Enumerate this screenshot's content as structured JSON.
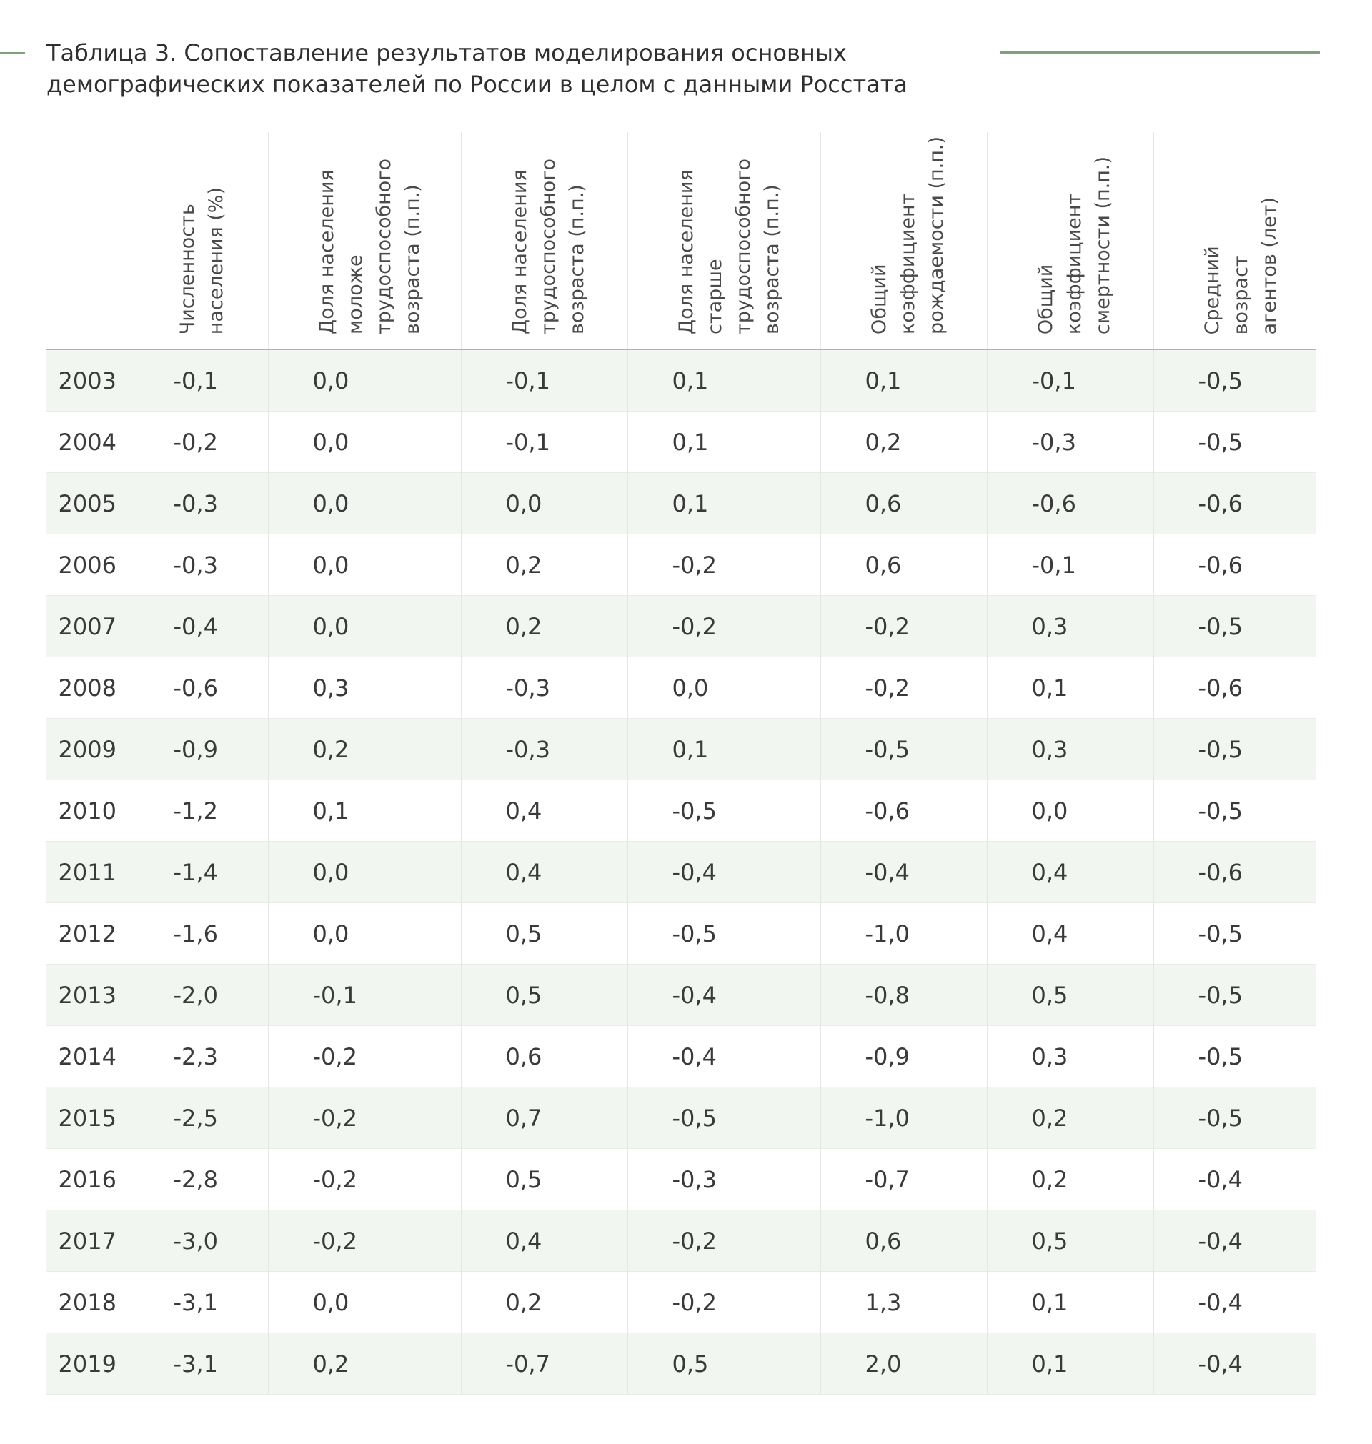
{
  "title": {
    "line1": "Таблица 3. Сопоставление результатов моделирования основных",
    "line2": "демографических показателей по России в целом с данными Росстата"
  },
  "table": {
    "columns": [
      "Численность\nнаселения (%)",
      "Доля населения\nмоложе\nтрудоспособного\nвозраста (п.п.)",
      "Доля населения\nтрудоспособного\nвозраста (п.п.)",
      "Доля населения\nстарше\nтрудоспособного\nвозраста (п.п.)",
      "Общий\nкоэффициент\nрождаемости (п.п.)",
      "Общий\nкоэффициент\nсмертности (п.п.)",
      "Средний\nвозраст\nагентов (лет)"
    ],
    "rows": [
      {
        "year": "2003",
        "values": [
          "-0,1",
          "0,0",
          "-0,1",
          "0,1",
          "0,1",
          "-0,1",
          "-0,5"
        ]
      },
      {
        "year": "2004",
        "values": [
          "-0,2",
          "0,0",
          "-0,1",
          "0,1",
          "0,2",
          "-0,3",
          "-0,5"
        ]
      },
      {
        "year": "2005",
        "values": [
          "-0,3",
          "0,0",
          "0,0",
          "0,1",
          "0,6",
          "-0,6",
          "-0,6"
        ]
      },
      {
        "year": "2006",
        "values": [
          "-0,3",
          "0,0",
          "0,2",
          "-0,2",
          "0,6",
          "-0,1",
          "-0,6"
        ]
      },
      {
        "year": "2007",
        "values": [
          "-0,4",
          "0,0",
          "0,2",
          "-0,2",
          "-0,2",
          "0,3",
          "-0,5"
        ]
      },
      {
        "year": "2008",
        "values": [
          "-0,6",
          "0,3",
          "-0,3",
          "0,0",
          "-0,2",
          "0,1",
          "-0,6"
        ]
      },
      {
        "year": "2009",
        "values": [
          "-0,9",
          "0,2",
          "-0,3",
          "0,1",
          "-0,5",
          "0,3",
          "-0,5"
        ]
      },
      {
        "year": "2010",
        "values": [
          "-1,2",
          "0,1",
          "0,4",
          "-0,5",
          "-0,6",
          "0,0",
          "-0,5"
        ]
      },
      {
        "year": "2011",
        "values": [
          "-1,4",
          "0,0",
          "0,4",
          "-0,4",
          "-0,4",
          "0,4",
          "-0,6"
        ]
      },
      {
        "year": "2012",
        "values": [
          "-1,6",
          "0,0",
          "0,5",
          "-0,5",
          "-1,0",
          "0,4",
          "-0,5"
        ]
      },
      {
        "year": "2013",
        "values": [
          "-2,0",
          "-0,1",
          "0,5",
          "-0,4",
          "-0,8",
          "0,5",
          "-0,5"
        ]
      },
      {
        "year": "2014",
        "values": [
          "-2,3",
          "-0,2",
          "0,6",
          "-0,4",
          "-0,9",
          "0,3",
          "-0,5"
        ]
      },
      {
        "year": "2015",
        "values": [
          "-2,5",
          "-0,2",
          "0,7",
          "-0,5",
          "-1,0",
          "0,2",
          "-0,5"
        ]
      },
      {
        "year": "2016",
        "values": [
          "-2,8",
          "-0,2",
          "0,5",
          "-0,3",
          "-0,7",
          "0,2",
          "-0,4"
        ]
      },
      {
        "year": "2017",
        "values": [
          "-3,0",
          "-0,2",
          "0,4",
          "-0,2",
          "0,6",
          "0,5",
          "-0,4"
        ]
      },
      {
        "year": "2018",
        "values": [
          "-3,1",
          "0,0",
          "0,2",
          "-0,2",
          "1,3",
          "0,1",
          "-0,4"
        ]
      },
      {
        "year": "2019",
        "values": [
          "-3,1",
          "0,2",
          "-0,7",
          "0,5",
          "2,0",
          "0,1",
          "-0,4"
        ]
      }
    ]
  }
}
